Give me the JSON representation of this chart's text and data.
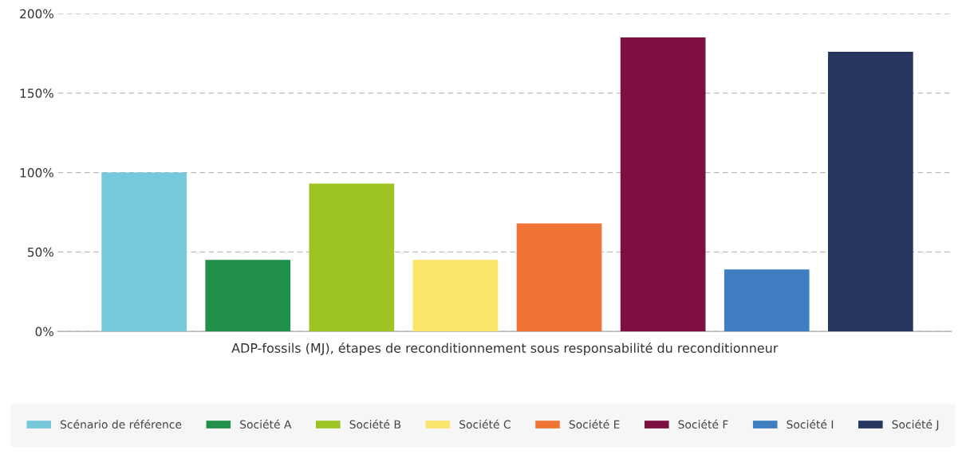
{
  "chart_data": {
    "type": "bar",
    "xlabel": "ADP-fossils (MJ), étapes de reconditionnement sous responsabilité du reconditionneur",
    "categories": [
      null,
      null,
      null,
      null,
      null,
      null,
      null,
      null
    ],
    "series": [
      {
        "name": "Scénario de référence",
        "color": "#78c8dc",
        "values": [
          100,
          null,
          null,
          null,
          null,
          null,
          null,
          null
        ]
      },
      {
        "name": "Société A",
        "color": "#21904a",
        "values": [
          null,
          45,
          null,
          null,
          null,
          null,
          null,
          null
        ]
      },
      {
        "name": "Société B",
        "color": "#9dc423",
        "values": [
          null,
          null,
          93,
          null,
          null,
          null,
          null,
          null
        ]
      },
      {
        "name": "Société C",
        "color": "#fbe46c",
        "values": [
          null,
          null,
          null,
          45,
          null,
          null,
          null,
          null
        ]
      },
      {
        "name": "Société E",
        "color": "#ef7436",
        "values": [
          null,
          null,
          null,
          null,
          68,
          null,
          null,
          null
        ]
      },
      {
        "name": "Société F",
        "color": "#7d1040",
        "values": [
          null,
          null,
          null,
          null,
          null,
          185,
          null,
          null
        ]
      },
      {
        "name": "Société I",
        "color": "#3f7ec1",
        "values": [
          null,
          null,
          null,
          null,
          null,
          null,
          39,
          null
        ]
      },
      {
        "name": "Société J",
        "color": "#26365f",
        "values": [
          null,
          null,
          null,
          null,
          null,
          null,
          null,
          176
        ]
      }
    ],
    "ylim": [
      0,
      200
    ],
    "yticks": [
      {
        "value": 0,
        "label": "0%"
      },
      {
        "value": 50,
        "label": "50%"
      },
      {
        "value": 100,
        "label": "100%"
      },
      {
        "value": 150,
        "label": "150%"
      },
      {
        "value": 200,
        "label": "200%"
      }
    ],
    "grid": "y",
    "legend": "bottom",
    "tick_labels": "y"
  }
}
